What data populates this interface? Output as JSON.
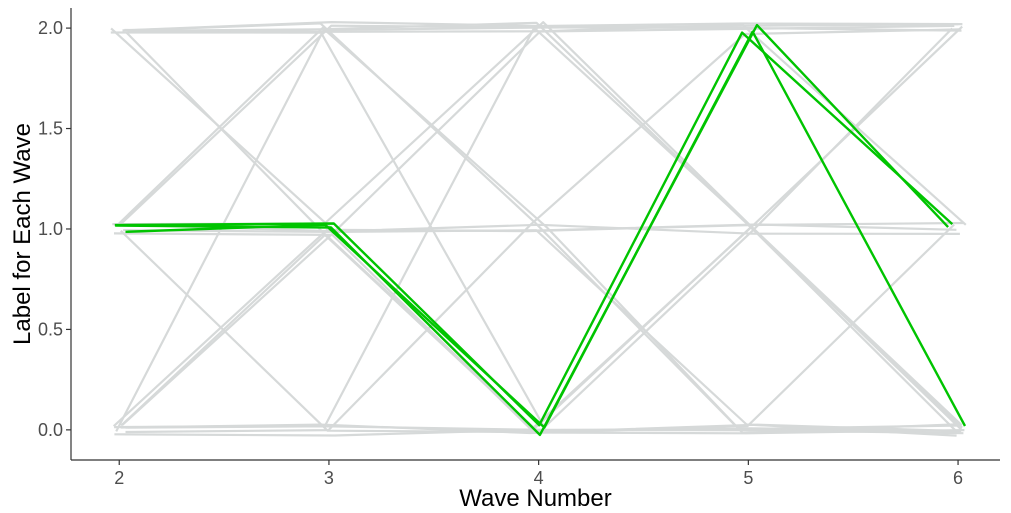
{
  "chart_data": {
    "type": "line",
    "title": "",
    "xlabel": "Wave Number",
    "ylabel": "Label for Each Wave",
    "xlim": [
      1.77,
      6.2
    ],
    "ylim": [
      -0.15,
      2.1
    ],
    "x_ticks": [
      2,
      3,
      4,
      5,
      6
    ],
    "y_ticks": [
      0.0,
      0.5,
      1.0,
      1.5,
      2.0
    ],
    "y_tick_labels": [
      "0.0",
      "0.5",
      "1.0",
      "1.5",
      "2.0"
    ],
    "grid": false,
    "legend": "none",
    "colors": {
      "background_series": "#d6d9d9",
      "highlight_series": "#00c400",
      "axis": "#333333"
    },
    "series_background": [
      {
        "x": [
          2,
          3,
          4,
          5,
          6
        ],
        "y": [
          2,
          2,
          2,
          2,
          2
        ]
      },
      {
        "x": [
          2,
          3,
          4,
          5,
          6
        ],
        "y": [
          2,
          2,
          2,
          2,
          1
        ]
      },
      {
        "x": [
          2,
          3,
          4,
          5,
          6
        ],
        "y": [
          2,
          1,
          1,
          1,
          1
        ]
      },
      {
        "x": [
          2,
          3,
          4,
          5,
          6
        ],
        "y": [
          2,
          1,
          0,
          0,
          0
        ]
      },
      {
        "x": [
          2,
          3,
          4,
          5,
          6
        ],
        "y": [
          1,
          1,
          1,
          1,
          1
        ]
      },
      {
        "x": [
          2,
          3,
          4,
          5,
          6
        ],
        "y": [
          1,
          1,
          1,
          0,
          0
        ]
      },
      {
        "x": [
          2,
          3,
          4,
          5,
          6
        ],
        "y": [
          1,
          1,
          0,
          0,
          0
        ]
      },
      {
        "x": [
          2,
          3,
          4,
          5,
          6
        ],
        "y": [
          1,
          2,
          2,
          2,
          2
        ]
      },
      {
        "x": [
          2,
          3,
          4,
          5,
          6
        ],
        "y": [
          1,
          2,
          1,
          0,
          0
        ]
      },
      {
        "x": [
          2,
          3,
          4,
          5,
          6
        ],
        "y": [
          0,
          0,
          0,
          0,
          0
        ]
      },
      {
        "x": [
          2,
          3,
          4,
          5,
          6
        ],
        "y": [
          0,
          0,
          0,
          0,
          1
        ]
      },
      {
        "x": [
          2,
          3,
          4,
          5,
          6
        ],
        "y": [
          0,
          1,
          1,
          1,
          1
        ]
      },
      {
        "x": [
          2,
          3,
          4,
          5,
          6
        ],
        "y": [
          0,
          1,
          0,
          1,
          0
        ]
      },
      {
        "x": [
          2,
          3,
          4,
          5,
          6
        ],
        "y": [
          0,
          1,
          2,
          2,
          2
        ]
      },
      {
        "x": [
          2,
          3,
          4,
          5,
          6
        ],
        "y": [
          0,
          2,
          2,
          2,
          2
        ]
      },
      {
        "x": [
          2,
          3,
          4,
          5,
          6
        ],
        "y": [
          0,
          0,
          1,
          2,
          2
        ]
      },
      {
        "x": [
          2,
          3,
          4,
          5,
          6
        ],
        "y": [
          2,
          2,
          0,
          1,
          2
        ]
      },
      {
        "x": [
          2,
          3,
          4,
          5,
          6
        ],
        "y": [
          2,
          2,
          1,
          0,
          0
        ]
      },
      {
        "x": [
          2,
          3,
          4,
          5,
          6
        ],
        "y": [
          0,
          0,
          2,
          1,
          0
        ]
      },
      {
        "x": [
          2,
          3,
          4,
          5,
          6
        ],
        "y": [
          0,
          0,
          0,
          1,
          2
        ]
      },
      {
        "x": [
          2,
          3,
          4,
          5,
          6
        ],
        "y": [
          1,
          0,
          0,
          0,
          0
        ]
      },
      {
        "x": [
          2,
          3,
          4,
          5,
          6
        ],
        "y": [
          2,
          2,
          2,
          1,
          0
        ]
      },
      {
        "x": [
          2,
          3,
          4,
          5,
          6
        ],
        "y": [
          1,
          1,
          2,
          1,
          0
        ]
      }
    ],
    "series_highlight": [
      {
        "x": [
          2,
          3,
          4,
          5,
          6
        ],
        "y": [
          1,
          1,
          0,
          2,
          1
        ]
      },
      {
        "x": [
          2,
          3,
          4,
          5,
          6
        ],
        "y": [
          1,
          1,
          0,
          2,
          1
        ]
      },
      {
        "x": [
          2,
          3,
          4,
          5,
          6
        ],
        "y": [
          1,
          1,
          0,
          2,
          0
        ]
      }
    ]
  }
}
